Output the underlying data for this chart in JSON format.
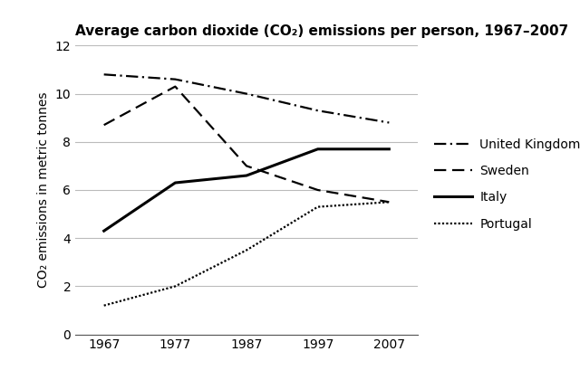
{
  "title": "Average carbon dioxide (CO₂) emissions per person, 1967–2007",
  "ylabel": "CO₂ emissions in metric tonnes",
  "years": [
    1967,
    1977,
    1987,
    1997,
    2007
  ],
  "united_kingdom": [
    10.8,
    10.6,
    10.0,
    9.3,
    8.8
  ],
  "sweden": [
    8.7,
    10.3,
    7.0,
    6.0,
    5.5
  ],
  "italy": [
    4.3,
    6.3,
    6.6,
    7.7,
    7.7
  ],
  "portugal": [
    1.2,
    2.0,
    3.5,
    5.3,
    5.5
  ],
  "ylim": [
    0,
    12
  ],
  "yticks": [
    0,
    2,
    4,
    6,
    8,
    10,
    12
  ],
  "xlim": [
    1963,
    2011
  ],
  "xticks": [
    1967,
    1977,
    1987,
    1997,
    2007
  ],
  "background_color": "#ffffff",
  "line_color": "#000000",
  "grid_color": "#bbbbbb",
  "legend_labels": [
    "United Kingdom",
    "Sweden",
    "Italy",
    "Portugal"
  ],
  "title_fontsize": 11,
  "label_fontsize": 10,
  "tick_fontsize": 10,
  "legend_fontsize": 10
}
